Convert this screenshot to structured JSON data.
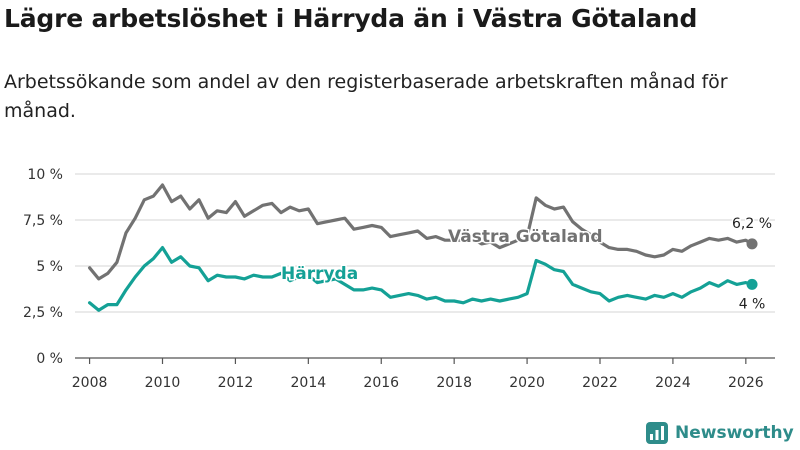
{
  "title": "Lägre arbetslöshet i Härryda än i Västra Götaland",
  "subtitle": "Arbetssökande som andel av den registerbaserade arbetskraften månad för månad.",
  "brand": "Newsworthy",
  "colors": {
    "vg": "#727272",
    "harryda": "#14a196",
    "grid": "#d4d4d4",
    "axis": "#555555",
    "brand": "#2e8c8a"
  },
  "chart_data": {
    "type": "line",
    "xlim": [
      2007.6,
      2026.8
    ],
    "ylim": [
      0,
      10
    ],
    "y_ticks": [
      0,
      2.5,
      5,
      7.5,
      10
    ],
    "y_tick_labels": [
      "0 %",
      "2,5 %",
      "5 %",
      "7,5 %",
      "10 %"
    ],
    "x_ticks": [
      2008,
      2010,
      2012,
      2014,
      2016,
      2018,
      2020,
      2022,
      2024,
      2026
    ],
    "x_tick_labels": [
      "2008",
      "2010",
      "2012",
      "2014",
      "2016",
      "2018",
      "2020",
      "2022",
      "2024",
      "2026"
    ],
    "grid": true,
    "series": [
      {
        "name": "Västra Götaland",
        "label": "Västra Götaland",
        "end_label": "6,2 %",
        "x": [
          2008.0,
          2008.25,
          2008.5,
          2008.75,
          2009.0,
          2009.25,
          2009.5,
          2009.75,
          2010.0,
          2010.25,
          2010.5,
          2010.75,
          2011.0,
          2011.25,
          2011.5,
          2011.75,
          2012.0,
          2012.25,
          2012.5,
          2012.75,
          2013.0,
          2013.25,
          2013.5,
          2013.75,
          2014.0,
          2014.25,
          2014.5,
          2014.75,
          2015.0,
          2015.25,
          2015.5,
          2015.75,
          2016.0,
          2016.25,
          2016.5,
          2016.75,
          2017.0,
          2017.25,
          2017.5,
          2017.75,
          2018.0,
          2018.25,
          2018.5,
          2018.75,
          2019.0,
          2019.25,
          2019.5,
          2019.75,
          2020.0,
          2020.25,
          2020.5,
          2020.75,
          2021.0,
          2021.25,
          2021.5,
          2021.75,
          2022.0,
          2022.25,
          2022.5,
          2022.75,
          2023.0,
          2023.25,
          2023.5,
          2023.75,
          2024.0,
          2024.25,
          2024.5,
          2024.75,
          2025.0,
          2025.25,
          2025.5,
          2025.75,
          2026.0,
          2026.17
        ],
        "values": [
          4.9,
          4.3,
          4.6,
          5.2,
          6.8,
          7.6,
          8.6,
          8.8,
          9.4,
          8.5,
          8.8,
          8.1,
          8.6,
          7.6,
          8.0,
          7.9,
          8.5,
          7.7,
          8.0,
          8.3,
          8.4,
          7.9,
          8.2,
          8.0,
          8.1,
          7.3,
          7.4,
          7.5,
          7.6,
          7.0,
          7.1,
          7.2,
          7.1,
          6.6,
          6.7,
          6.8,
          6.9,
          6.5,
          6.6,
          6.4,
          6.4,
          6.4,
          6.5,
          6.2,
          6.3,
          6.0,
          6.2,
          6.4,
          6.6,
          8.7,
          8.3,
          8.1,
          8.2,
          7.4,
          7.0,
          6.7,
          6.3,
          6.0,
          5.9,
          5.9,
          5.8,
          5.6,
          5.5,
          5.6,
          5.9,
          5.8,
          6.1,
          6.3,
          6.5,
          6.4,
          6.5,
          6.3,
          6.4,
          6.2
        ]
      },
      {
        "name": "Härryda",
        "label": "Härryda",
        "end_label": "4 %",
        "x": [
          2008.0,
          2008.25,
          2008.5,
          2008.75,
          2009.0,
          2009.25,
          2009.5,
          2009.75,
          2010.0,
          2010.25,
          2010.5,
          2010.75,
          2011.0,
          2011.25,
          2011.5,
          2011.75,
          2012.0,
          2012.25,
          2012.5,
          2012.75,
          2013.0,
          2013.25,
          2013.5,
          2013.75,
          2014.0,
          2014.25,
          2014.5,
          2014.75,
          2015.0,
          2015.25,
          2015.5,
          2015.75,
          2016.0,
          2016.25,
          2016.5,
          2016.75,
          2017.0,
          2017.25,
          2017.5,
          2017.75,
          2018.0,
          2018.25,
          2018.5,
          2018.75,
          2019.0,
          2019.25,
          2019.5,
          2019.75,
          2020.0,
          2020.25,
          2020.5,
          2020.75,
          2021.0,
          2021.25,
          2021.5,
          2021.75,
          2022.0,
          2022.25,
          2022.5,
          2022.75,
          2023.0,
          2023.25,
          2023.5,
          2023.75,
          2024.0,
          2024.25,
          2024.5,
          2024.75,
          2025.0,
          2025.25,
          2025.5,
          2025.75,
          2026.0,
          2026.17
        ],
        "values": [
          3.0,
          2.6,
          2.9,
          2.9,
          3.7,
          4.4,
          5.0,
          5.4,
          6.0,
          5.2,
          5.5,
          5.0,
          4.9,
          4.2,
          4.5,
          4.4,
          4.4,
          4.3,
          4.5,
          4.4,
          4.4,
          4.6,
          4.2,
          4.4,
          4.5,
          4.1,
          4.2,
          4.3,
          4.0,
          3.7,
          3.7,
          3.8,
          3.7,
          3.3,
          3.4,
          3.5,
          3.4,
          3.2,
          3.3,
          3.1,
          3.1,
          3.0,
          3.2,
          3.1,
          3.2,
          3.1,
          3.2,
          3.3,
          3.5,
          5.3,
          5.1,
          4.8,
          4.7,
          4.0,
          3.8,
          3.6,
          3.5,
          3.1,
          3.3,
          3.4,
          3.3,
          3.2,
          3.4,
          3.3,
          3.5,
          3.3,
          3.6,
          3.8,
          4.1,
          3.9,
          4.2,
          4.0,
          4.1,
          4.0
        ]
      }
    ]
  }
}
